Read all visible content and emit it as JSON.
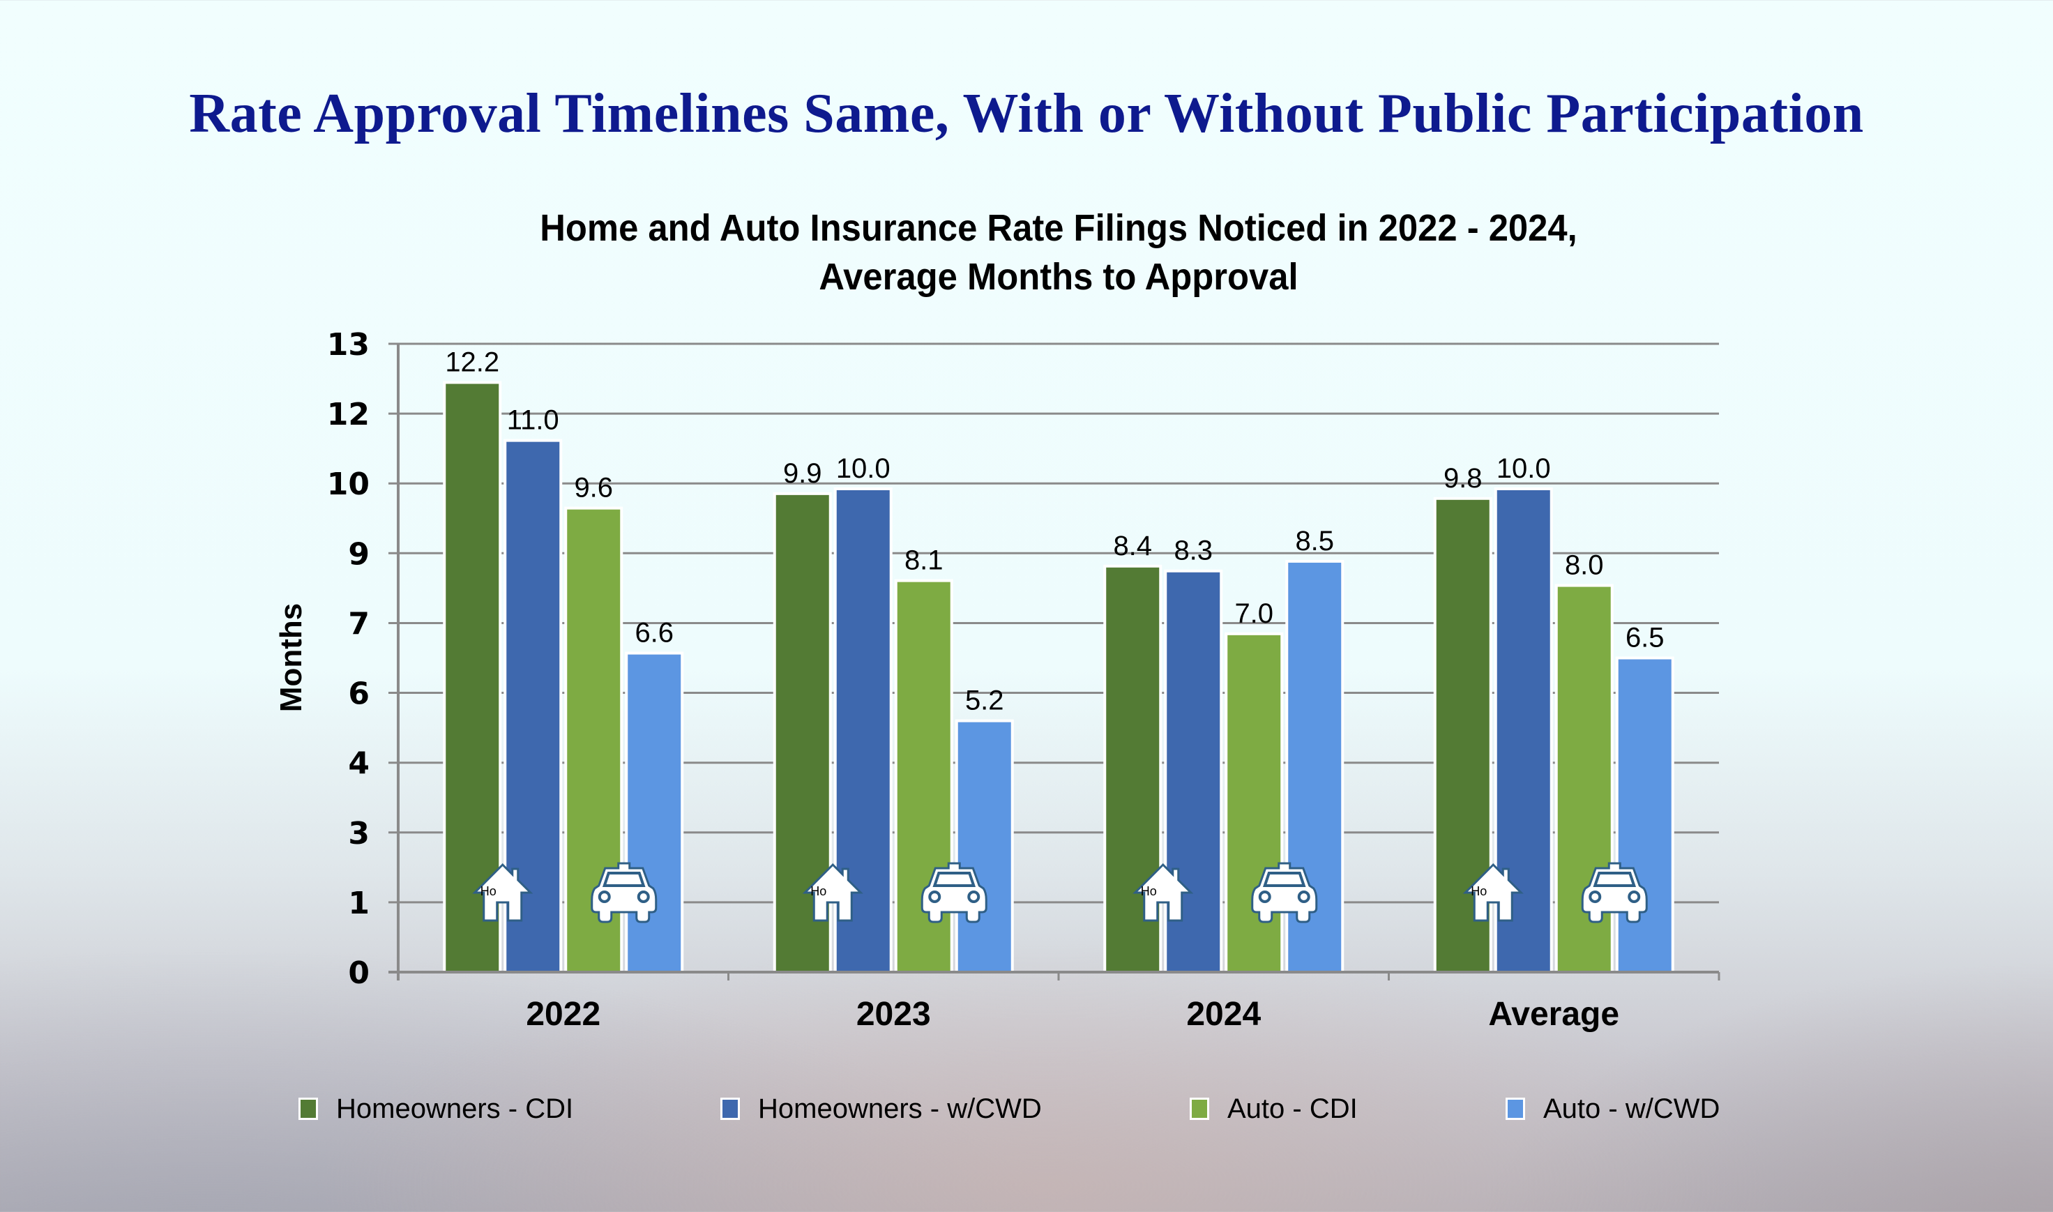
{
  "slide": {
    "title": "Rate Approval Timelines Same, With or Without Public Participation"
  },
  "colors": {
    "title": "#0E1A8E",
    "gridline": "#8a8a8a",
    "bar_border": "#ffffff",
    "icon_stroke": "#2F5F86",
    "icon_fill": "#ffffff"
  },
  "chart_data": {
    "type": "bar",
    "title_lines": [
      "Home and Auto Insurance Rate Filings Noticed in 2022 - 2024,",
      "Average Months to Approval"
    ],
    "xlabel": "",
    "ylabel": "Months",
    "ylim": [
      0,
      13
    ],
    "yticks": [
      {
        "value": 0,
        "label": "0"
      },
      {
        "value": 1.444,
        "label": "1"
      },
      {
        "value": 2.889,
        "label": "3"
      },
      {
        "value": 4.333,
        "label": "4"
      },
      {
        "value": 5.778,
        "label": "6"
      },
      {
        "value": 7.222,
        "label": "7"
      },
      {
        "value": 8.667,
        "label": "9"
      },
      {
        "value": 10.111,
        "label": "10"
      },
      {
        "value": 11.556,
        "label": "12"
      },
      {
        "value": 13,
        "label": "13"
      }
    ],
    "grid": true,
    "legend_position": "bottom",
    "categories": [
      "2022",
      "2023",
      "2024",
      "Average"
    ],
    "series": [
      {
        "name": "Homeowners - CDI",
        "color": "#537B34",
        "values": [
          12.2,
          9.9,
          8.4,
          9.8
        ],
        "labels": [
          "12.2",
          "9.9",
          "8.4",
          "9.8"
        ]
      },
      {
        "name": "Homeowners - w/CWD",
        "color": "#3E68AE",
        "values": [
          11.0,
          10.0,
          8.3,
          10.0
        ],
        "labels": [
          "11.0",
          "10.0",
          "8.3",
          "10.0"
        ]
      },
      {
        "name": "Auto - CDI",
        "color": "#7EAB43",
        "values": [
          9.6,
          8.1,
          7.0,
          8.0
        ],
        "labels": [
          "9.6",
          "8.1",
          "7.0",
          "8.0"
        ]
      },
      {
        "name": "Auto - w/CWD",
        "color": "#5C96E2",
        "values": [
          6.6,
          5.2,
          8.5,
          6.5
        ],
        "labels": [
          "6.6",
          "5.2",
          "8.5",
          "6.5"
        ]
      }
    ],
    "icons": {
      "home": {
        "name": "house-icon",
        "text": "Ho"
      },
      "auto": {
        "name": "car-icon"
      }
    }
  }
}
